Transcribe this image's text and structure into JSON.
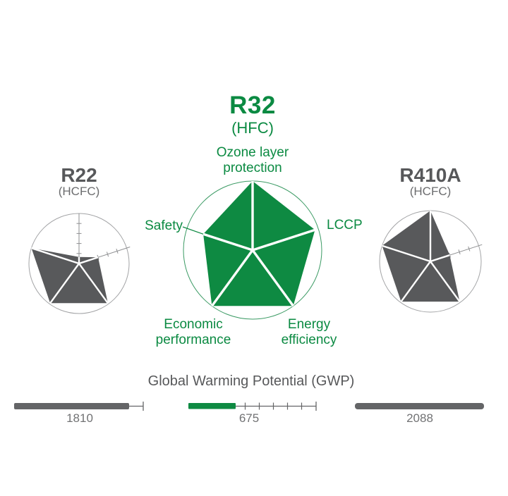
{
  "colors": {
    "green": "#0e8a42",
    "green_text": "#0b8a42",
    "green_circle": "#3a9a63",
    "gray_fill": "#58595b",
    "gray_title": "#57585a",
    "gray_family": "#6b6c6e",
    "gray_number": "#717274",
    "bar_gray": "#646567",
    "circle_gray": "#a2a3a5",
    "tick_gray": "#8e8f91",
    "spoke_white": "#ffffff"
  },
  "radar": {
    "axes": [
      "Ozone layer protection",
      "LCCP",
      "Energy efficiency",
      "Economic performance",
      "Safety"
    ],
    "center": {
      "name": "R32",
      "family": "(HFC)"
    },
    "left": {
      "name": "R22",
      "family": "(HCFC)"
    },
    "right": {
      "name": "R410A",
      "family": "(HCFC)"
    }
  },
  "gwp": {
    "title": "Global Warming Potential (GWP)",
    "r22": "1810",
    "r32": "675",
    "r410a": "2088"
  },
  "chart_data": [
    {
      "type": "radar",
      "name": "R32",
      "subtitle": "(HFC)",
      "axes": [
        "Ozone layer protection",
        "LCCP",
        "Energy efficiency",
        "Economic performance",
        "Safety"
      ],
      "values": [
        1.0,
        0.95,
        1.0,
        1.0,
        0.75
      ],
      "range": [
        0,
        1
      ],
      "fill": "#0e8a42",
      "position": "center",
      "annotation": "Safety label connected to vertex by leader line"
    },
    {
      "type": "radar",
      "name": "R22",
      "subtitle": "(HCFC)",
      "axes": [
        "Ozone layer protection",
        "LCCP",
        "Energy efficiency",
        "Economic performance",
        "Safety"
      ],
      "values": [
        0.13,
        0.4,
        0.98,
        0.98,
        1.0
      ],
      "range": [
        0,
        1
      ],
      "fill": "#58595b",
      "position": "left"
    },
    {
      "type": "radar",
      "name": "R410A",
      "subtitle": "(HCFC)",
      "axes": [
        "Ozone layer protection",
        "LCCP",
        "Energy efficiency",
        "Economic performance",
        "Safety"
      ],
      "values": [
        1.0,
        0.4,
        0.98,
        0.98,
        1.0
      ],
      "range": [
        0,
        1
      ],
      "fill": "#58595b",
      "position": "right"
    },
    {
      "type": "bar",
      "title": "Global Warming Potential (GWP)",
      "categories": [
        "R22",
        "R32",
        "R410A"
      ],
      "values": [
        1810,
        675,
        2088
      ],
      "colors": [
        "#646567",
        "#0e8a42",
        "#646567"
      ],
      "orientation": "horizontal",
      "note": "R32 bar shown with tick-mark scale; R22 bar with short end tick"
    }
  ]
}
